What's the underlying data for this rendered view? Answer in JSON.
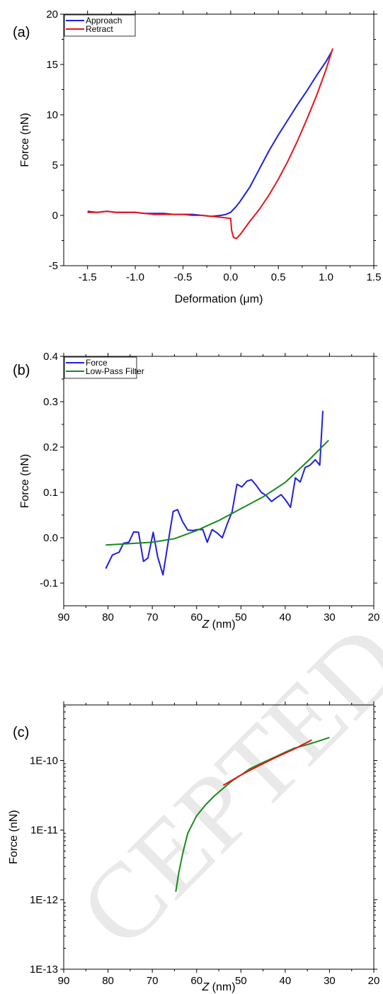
{
  "watermark": "CEPTED",
  "chart_data": [
    {
      "panel_label": "(a)",
      "type": "line",
      "xlabel": "Deformation (μm)",
      "ylabel": "Force (nN)",
      "xlim": [
        -1.75,
        1.5
      ],
      "ylim": [
        -5,
        20
      ],
      "xticks": [
        -1.5,
        -1.0,
        -0.5,
        0.0,
        0.5,
        1.0,
        1.5
      ],
      "xtick_labels": [
        "-1.5",
        "-1.0",
        "-0.5",
        "0.0",
        "0.5",
        "1.0",
        "1.5"
      ],
      "yticks": [
        -5,
        0,
        5,
        10,
        15,
        20
      ],
      "ytick_labels": [
        "-5",
        "0",
        "5",
        "10",
        "15",
        "20"
      ],
      "legend_position": "top-left",
      "series": [
        {
          "name": "Approach",
          "color": "#1f1fe0",
          "x": [
            -1.5,
            -1.4,
            -1.3,
            -1.2,
            -1.1,
            -1.0,
            -0.9,
            -0.8,
            -0.7,
            -0.6,
            -0.5,
            -0.4,
            -0.3,
            -0.2,
            -0.1,
            -0.05,
            0.0,
            0.05,
            0.1,
            0.2,
            0.3,
            0.4,
            0.5,
            0.6,
            0.7,
            0.8,
            0.9,
            1.0,
            1.06
          ],
          "y": [
            0.4,
            0.3,
            0.4,
            0.3,
            0.3,
            0.3,
            0.2,
            0.2,
            0.2,
            0.1,
            0.1,
            0.1,
            0.0,
            -0.1,
            0.0,
            0.1,
            0.3,
            0.8,
            1.4,
            2.8,
            4.6,
            6.4,
            8.0,
            9.5,
            11.0,
            12.4,
            13.9,
            15.3,
            16.3
          ]
        },
        {
          "name": "Retract",
          "color": "#e8141c",
          "x": [
            -1.5,
            -1.4,
            -1.3,
            -1.2,
            -1.1,
            -1.0,
            -0.9,
            -0.8,
            -0.7,
            -0.6,
            -0.5,
            -0.4,
            -0.3,
            -0.2,
            -0.1,
            0.0,
            0.01,
            0.03,
            0.06,
            0.1,
            0.2,
            0.3,
            0.4,
            0.5,
            0.6,
            0.7,
            0.8,
            0.9,
            1.0,
            1.07
          ],
          "y": [
            0.3,
            0.3,
            0.4,
            0.3,
            0.3,
            0.3,
            0.2,
            0.1,
            0.1,
            0.1,
            0.1,
            0.0,
            0.0,
            -0.1,
            -0.2,
            -0.3,
            -1.5,
            -2.2,
            -2.3,
            -1.9,
            -0.6,
            0.6,
            2.0,
            3.6,
            5.4,
            7.4,
            9.6,
            11.9,
            14.5,
            16.6
          ]
        }
      ]
    },
    {
      "panel_label": "(b)",
      "type": "line",
      "xlabel_italic": "Z",
      "xlabel_rest": " (nm)",
      "ylabel": "Force (nN)",
      "xlim": [
        90,
        20
      ],
      "ylim": [
        -0.15,
        0.4
      ],
      "xticks": [
        90,
        80,
        70,
        60,
        50,
        40,
        30,
        20
      ],
      "xtick_labels": [
        "90",
        "80",
        "70",
        "60",
        "50",
        "40",
        "30",
        "20"
      ],
      "yticks": [
        -0.1,
        0.0,
        0.1,
        0.2,
        0.3,
        0.4
      ],
      "ytick_labels": [
        "-0.1",
        "0.0",
        "0.1",
        "0.2",
        "0.3",
        "0.4"
      ],
      "legend_position": "top-left",
      "series": [
        {
          "name": "Force",
          "color": "#1f1fe0",
          "x": [
            80.5,
            79,
            77.5,
            76.5,
            75.3,
            74.2,
            73.1,
            72,
            71,
            69.8,
            68.8,
            67.6,
            66.5,
            65.3,
            64.3,
            63.2,
            62,
            60.9,
            59.8,
            58.6,
            57.6,
            56.5,
            55.3,
            54.2,
            53.1,
            52,
            50.9,
            49.8,
            48.6,
            47.6,
            46.5,
            45.4,
            44.3,
            43.1,
            42,
            40.9,
            39.9,
            38.8,
            37.7,
            36.6,
            35.5,
            34.4,
            33.2,
            32.2,
            31.5
          ],
          "y": [
            -0.068,
            -0.038,
            -0.032,
            -0.012,
            -0.01,
            0.013,
            0.012,
            -0.052,
            -0.045,
            0.012,
            -0.042,
            -0.082,
            -0.015,
            0.058,
            0.062,
            0.036,
            0.017,
            0.016,
            0.018,
            0.018,
            -0.01,
            0.018,
            0.01,
            0.0,
            0.03,
            0.057,
            0.118,
            0.112,
            0.125,
            0.128,
            0.115,
            0.1,
            0.093,
            0.08,
            0.088,
            0.095,
            0.083,
            0.067,
            0.132,
            0.123,
            0.155,
            0.16,
            0.172,
            0.16,
            0.28
          ]
        },
        {
          "name": "Low-Pass Filter",
          "color": "#1a8a1a",
          "x": [
            80.5,
            75,
            70,
            65,
            60,
            55,
            50,
            45,
            40,
            35,
            30.2
          ],
          "y": [
            -0.016,
            -0.013,
            -0.01,
            -0.002,
            0.016,
            0.038,
            0.064,
            0.09,
            0.122,
            0.168,
            0.215
          ]
        }
      ]
    },
    {
      "panel_label": "(c)",
      "type": "line",
      "log_y": true,
      "xlabel_italic": "Z",
      "xlabel_rest": " (nm)",
      "ylabel": "Force (nN)",
      "xlim": [
        90,
        20
      ],
      "ylim_exp": [
        -13,
        -9.2
      ],
      "xticks": [
        90,
        80,
        70,
        60,
        50,
        40,
        30,
        20
      ],
      "xtick_labels": [
        "90",
        "80",
        "70",
        "60",
        "50",
        "40",
        "30",
        "20"
      ],
      "yticks": [
        1e-13,
        1e-12,
        1e-11,
        1e-10
      ],
      "ytick_labels": [
        "1E-13",
        "1E-12",
        "1E-11",
        "1E-10"
      ],
      "series": [
        {
          "color": "#1a8a1a",
          "x": [
            64.7,
            64,
            63,
            62,
            60,
            58,
            56,
            54,
            52,
            50,
            48,
            45,
            42,
            40,
            38,
            35,
            32,
            30
          ],
          "y": [
            1.3e-12,
            2.5e-12,
            5e-12,
            9e-12,
            1.6e-11,
            2.3e-11,
            3.1e-11,
            4e-11,
            5.1e-11,
            6.2e-11,
            7.6e-11,
            9.4e-11,
            1.15e-10,
            1.32e-10,
            1.5e-10,
            1.7e-10,
            1.95e-10,
            2.15e-10
          ]
        },
        {
          "color": "#e8141c",
          "x": [
            54,
            50,
            46,
            42,
            38,
            34
          ],
          "y": [
            4.4e-11,
            6.2e-11,
            8.4e-11,
            1.12e-10,
            1.46e-10,
            1.98e-10
          ]
        }
      ]
    }
  ]
}
